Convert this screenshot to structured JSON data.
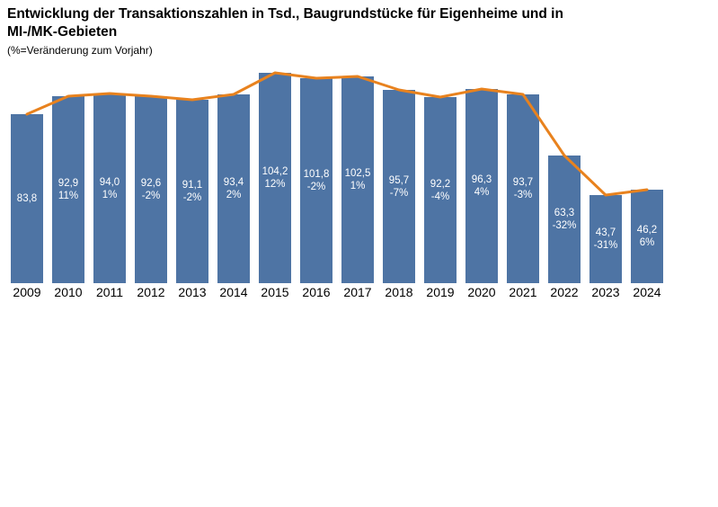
{
  "header": {
    "title": "Entwicklung der Transaktionszahlen in Tsd., Baugrundstücke für Eigenheime und in MI-/MK-Gebieten",
    "subtitle": "(%=Veränderung zum Vorjahr)"
  },
  "chart_data": {
    "type": "bar",
    "overlay": "line following the same values along the bar tops",
    "title": "Entwicklung der Transaktionszahlen in Tsd., Baugrundstücke für Eigenheime und in MI-/MK-Gebieten",
    "title_lines": [
      "Entwicklung der Transaktionszahlen in Tsd., Baugrundstücke für Eigenheime und in",
      "MI-/MK-Gebieten"
    ],
    "subtitle": "(%=Veränderung zum Vorjahr)",
    "categories": [
      "2009",
      "2010",
      "2011",
      "2012",
      "2013",
      "2014",
      "2015",
      "2016",
      "2017",
      "2018",
      "2019",
      "2020",
      "2021",
      "2022",
      "2023",
      "2024"
    ],
    "values": [
      83.8,
      92.9,
      94.0,
      92.6,
      91.1,
      93.4,
      104.2,
      101.8,
      102.5,
      95.7,
      92.2,
      96.3,
      93.7,
      63.3,
      43.7,
      46.2
    ],
    "value_labels": [
      "83,8",
      "92,9",
      "94,0",
      "92,6",
      "91,1",
      "93,4",
      "104,2",
      "101,8",
      "102,5",
      "95,7",
      "92,2",
      "96,3",
      "93,7",
      "63,3",
      "43,7",
      "46,2"
    ],
    "pct_change_labels": [
      null,
      "11%",
      "1%",
      "-2%",
      "-2%",
      "2%",
      "12%",
      "-2%",
      "1%",
      "-7%",
      "-4%",
      "4%",
      "-3%",
      "-32%",
      "-31%",
      "6%"
    ],
    "xlabel": "",
    "ylabel": "",
    "ylim": [
      0,
      110
    ],
    "grid": false,
    "legend": false,
    "y_axis_shown": false,
    "colors": {
      "bar": "#4E74A4",
      "line": "#E8821E",
      "bar_label_text": "#FFFFFF",
      "axis_label_text": "#000000"
    }
  }
}
